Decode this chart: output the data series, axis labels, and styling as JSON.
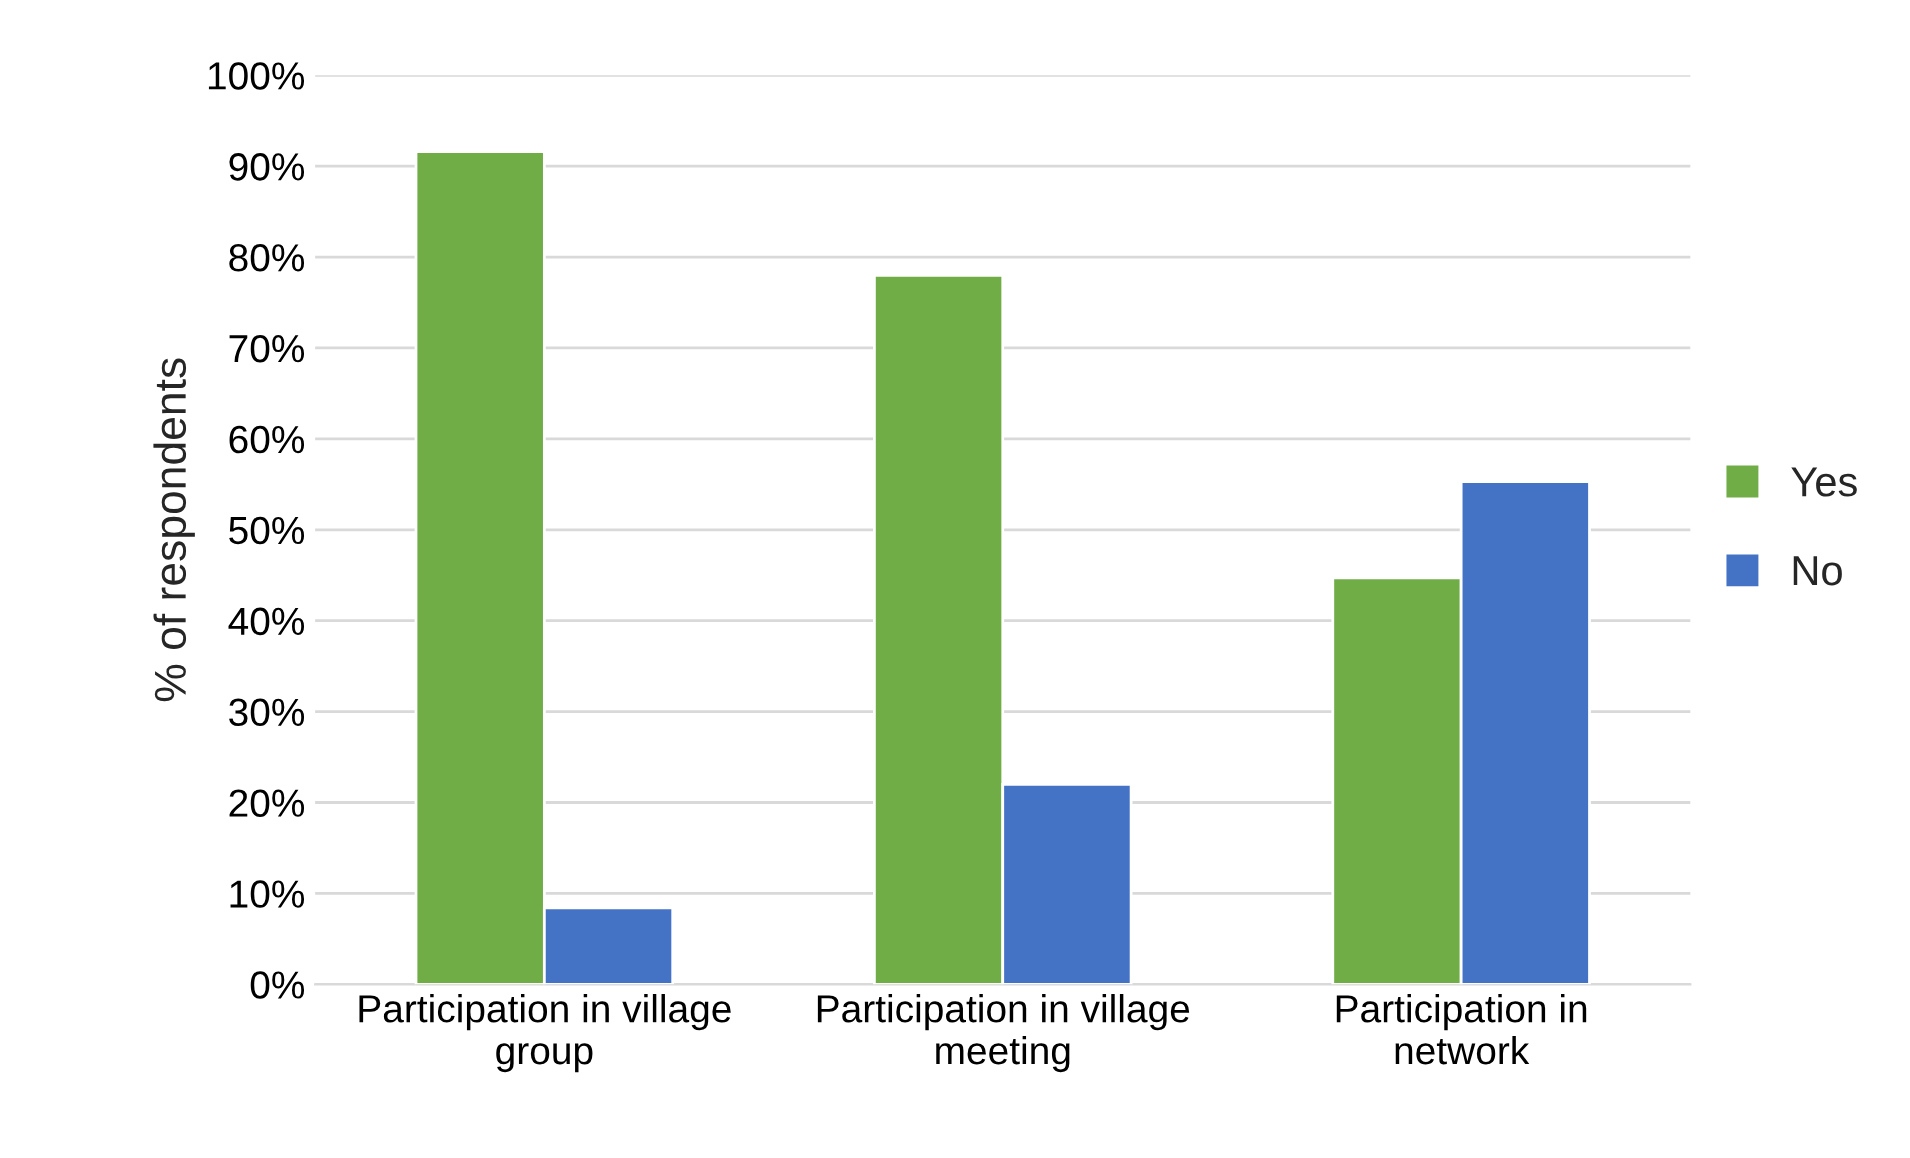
{
  "chart_data": {
    "type": "bar",
    "ylabel": "% of respondents",
    "categories": [
      "Participation in village\ngroup",
      "Participation in village\nmeeting",
      "Participation in\nnetwork"
    ],
    "series": [
      {
        "name": "Yes",
        "color": "#70ad47",
        "values": [
          91.6,
          78,
          44.7
        ]
      },
      {
        "name": "No",
        "color": "#4472c4",
        "values": [
          8.4,
          22,
          55.3
        ]
      }
    ],
    "ylim": [
      0,
      100
    ],
    "yticks": [
      {
        "value": 0,
        "label": "0%"
      },
      {
        "value": 10,
        "label": "10%"
      },
      {
        "value": 20,
        "label": "20%"
      },
      {
        "value": 30,
        "label": "30%"
      },
      {
        "value": 40,
        "label": "40%"
      },
      {
        "value": 50,
        "label": "50%"
      },
      {
        "value": 60,
        "label": "60%"
      },
      {
        "value": 70,
        "label": "70%"
      },
      {
        "value": 80,
        "label": "80%"
      },
      {
        "value": 90,
        "label": "90%"
      },
      {
        "value": 100,
        "label": "100%"
      }
    ],
    "grid": "y",
    "legend": "right"
  }
}
